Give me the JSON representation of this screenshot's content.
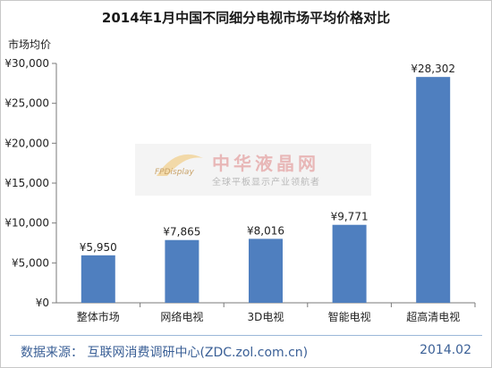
{
  "chart_data": {
    "type": "bar",
    "title": "2014年1月中国不同细分电视市场平均价格对比",
    "ylabel": "市场均价",
    "categories": [
      "整体市场",
      "网络电视",
      "3D电视",
      "智能电视",
      "超高清电视"
    ],
    "values": [
      5950,
      7865,
      8016,
      9771,
      28302
    ],
    "value_labels": [
      "¥5,950",
      "¥7,865",
      "¥8,016",
      "¥9,771",
      "¥28,302"
    ],
    "ylim": [
      0,
      30000
    ],
    "yticks": [
      0,
      5000,
      10000,
      15000,
      20000,
      25000,
      30000
    ],
    "ytick_labels": [
      "¥0",
      "¥5,000",
      "¥10,000",
      "¥15,000",
      "¥20,000",
      "¥25,000",
      "¥30,000"
    ],
    "bar_color": "#4f7fbf",
    "grid": false
  },
  "watermark": {
    "logo_text": "FPDisplay",
    "name": "中华液晶网",
    "tagline": "全球平板显示产业领航者"
  },
  "footer": {
    "source": "数据来源：  互联网消费调研中心(ZDC.zol.com.cn)",
    "date": "2014.02"
  }
}
